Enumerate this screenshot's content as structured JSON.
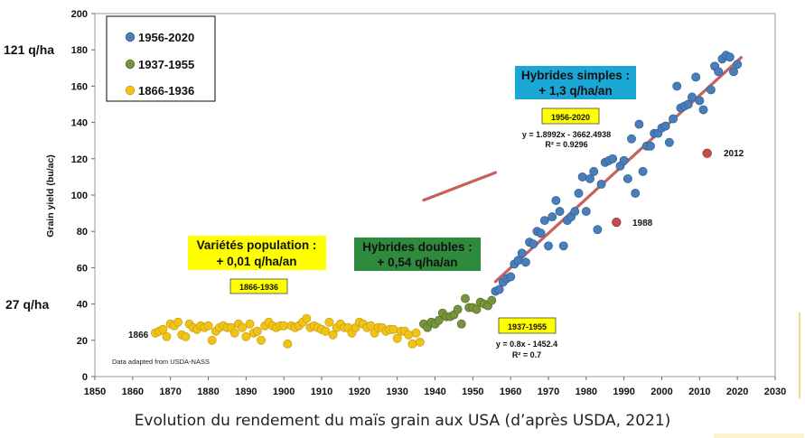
{
  "side_labels": {
    "top": "121 q/ha",
    "bottom": "27 q/ha"
  },
  "caption": "Evolution du rendement du maïs grain aux USA (d’après USDA, 2021)",
  "colors": {
    "series_1956_2020": "#4a7ebb",
    "series_1937_1955": "#77933c",
    "series_1866_1936": "#f2c317",
    "outliers": "#c0504d",
    "trend_line": "#c0504d",
    "box_yellow": "#ffff00",
    "box_green": "#2e8b3e",
    "box_blue": "#1ba7d6"
  },
  "chart_data": {
    "type": "scatter",
    "xlim": [
      1850,
      2030
    ],
    "ylim": [
      0,
      200
    ],
    "xticks": [
      1850,
      1860,
      1870,
      1880,
      1890,
      1900,
      1910,
      1920,
      1930,
      1940,
      1950,
      1960,
      1970,
      1980,
      1990,
      2000,
      2010,
      2020,
      2030
    ],
    "yticks": [
      0,
      20,
      40,
      60,
      80,
      100,
      120,
      140,
      160,
      180,
      200
    ],
    "ylabel": "Grain yield (bu/ac)",
    "legend": [
      {
        "label": "1956-2020",
        "color_key": "series_1956_2020"
      },
      {
        "label": "1937-1955",
        "color_key": "series_1937_1955"
      },
      {
        "label": "1866-1936",
        "color_key": "series_1866_1936"
      }
    ],
    "series": [
      {
        "name": "1866-1936",
        "color_key": "series_1866_1936",
        "x": [
          1866,
          1867,
          1868,
          1869,
          1870,
          1871,
          1872,
          1873,
          1874,
          1875,
          1876,
          1877,
          1878,
          1879,
          1880,
          1881,
          1882,
          1883,
          1884,
          1885,
          1886,
          1887,
          1888,
          1889,
          1890,
          1891,
          1892,
          1893,
          1894,
          1895,
          1896,
          1897,
          1898,
          1899,
          1900,
          1901,
          1902,
          1903,
          1904,
          1905,
          1906,
          1907,
          1908,
          1909,
          1910,
          1911,
          1912,
          1913,
          1914,
          1915,
          1916,
          1917,
          1918,
          1919,
          1920,
          1921,
          1922,
          1923,
          1924,
          1925,
          1926,
          1927,
          1928,
          1929,
          1930,
          1931,
          1932,
          1933,
          1934,
          1935,
          1936
        ],
        "y": [
          24,
          25,
          26,
          22,
          29,
          28,
          30,
          23,
          22,
          29,
          27,
          26,
          28,
          27,
          28,
          20,
          25,
          27,
          28,
          27,
          27,
          24,
          29,
          27,
          22,
          29,
          24,
          25,
          20,
          28,
          30,
          28,
          27,
          28,
          28,
          18,
          28,
          27,
          28,
          30,
          32,
          27,
          28,
          27,
          26,
          25,
          30,
          23,
          27,
          29,
          27,
          27,
          24,
          27,
          30,
          29,
          27,
          28,
          24,
          27,
          27,
          25,
          26,
          26,
          21,
          25,
          25,
          23,
          18,
          24,
          19
        ]
      },
      {
        "name": "1937-1955",
        "color_key": "series_1937_1955",
        "x": [
          1937,
          1938,
          1939,
          1940,
          1941,
          1942,
          1943,
          1944,
          1945,
          1946,
          1947,
          1948,
          1949,
          1950,
          1951,
          1952,
          1953,
          1954,
          1955
        ],
        "y": [
          29,
          27,
          30,
          29,
          31,
          35,
          33,
          33,
          34,
          37,
          29,
          43,
          38,
          38,
          37,
          41,
          40,
          39,
          42
        ]
      },
      {
        "name": "1956-2020",
        "color_key": "series_1956_2020",
        "x": [
          1956,
          1957,
          1958,
          1959,
          1960,
          1961,
          1962,
          1963,
          1964,
          1965,
          1966,
          1967,
          1968,
          1969,
          1970,
          1971,
          1972,
          1973,
          1974,
          1975,
          1976,
          1977,
          1978,
          1979,
          1980,
          1981,
          1982,
          1983,
          1984,
          1985,
          1986,
          1987,
          1988,
          1989,
          1990,
          1991,
          1992,
          1993,
          1994,
          1995,
          1996,
          1997,
          1998,
          1999,
          2000,
          2001,
          2002,
          2003,
          2004,
          2005,
          2006,
          2007,
          2008,
          2009,
          2010,
          2011,
          2012,
          2013,
          2014,
          2015,
          2016,
          2017,
          2018,
          2019,
          2020
        ],
        "y": [
          47,
          48,
          52,
          54,
          55,
          62,
          64,
          68,
          63,
          74,
          73,
          80,
          79,
          86,
          72,
          88,
          97,
          91,
          72,
          86,
          88,
          91,
          101,
          110,
          91,
          109,
          113,
          81,
          106,
          118,
          119,
          120,
          85,
          116,
          119,
          109,
          131,
          101,
          139,
          113,
          127,
          127,
          134,
          134,
          137,
          138,
          129,
          142,
          160,
          148,
          149,
          150,
          154,
          165,
          152,
          147,
          123,
          158,
          171,
          168,
          175,
          177,
          176,
          168,
          172
        ],
        "highlight": [
          {
            "x": 1988,
            "y": 85,
            "label": "1988"
          },
          {
            "x": 2012,
            "y": 123,
            "label": "2012"
          }
        ]
      }
    ],
    "trend_lines": [
      {
        "equation": "y = 0.8x - 1452.4",
        "r2": "R² = 0.7",
        "slope": 0.8,
        "intercept": -1452.4,
        "x_range": [
          1937,
          1956
        ]
      },
      {
        "equation": "y = 1.8992x - 3662.4938",
        "r2": "R² = 0.9296",
        "slope": 1.8992,
        "intercept": -3662.4938,
        "x_range": [
          1956,
          2021
        ]
      }
    ],
    "annotations": {
      "point_1866": "1866",
      "source": "Data adapted from USDA-NASS",
      "box_population": {
        "line1": "Variétés population :",
        "line2": "+ 0,01 q/ha/an"
      },
      "box_doubles": {
        "line1": "Hybrides doubles :",
        "line2": "+ 0,54 q/ha/an"
      },
      "box_simples": {
        "line1": "Hybrides simples :",
        "line2": "+ 1,3 q/ha/an"
      },
      "tag_1866_1936": "1866-1936",
      "tag_1937_1955": "1937-1955",
      "tag_1956_2020": "1956-2020"
    }
  }
}
